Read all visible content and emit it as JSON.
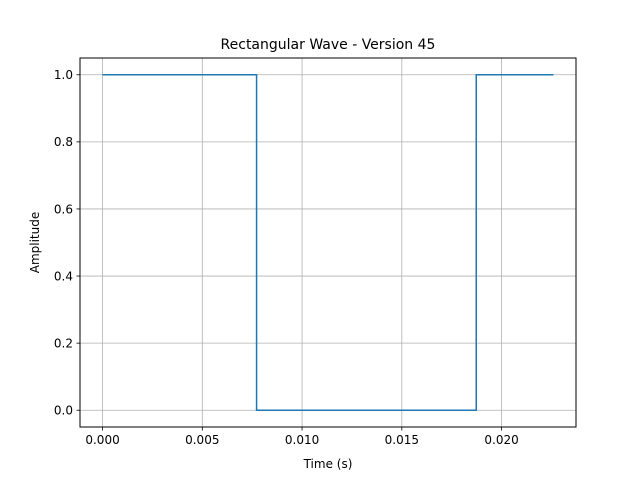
{
  "chart_data": {
    "type": "line",
    "title": "Rectangular Wave - Version 45",
    "xlabel": "Time (s)",
    "ylabel": "Amplitude",
    "xlim": [
      -0.00113,
      0.02373
    ],
    "ylim": [
      -0.05,
      1.05
    ],
    "grid": true,
    "x_ticks": [
      0.0,
      0.005,
      0.01,
      0.015,
      0.02
    ],
    "x_tick_labels": [
      "0.000",
      "0.005",
      "0.010",
      "0.015",
      "0.020"
    ],
    "y_ticks": [
      0.0,
      0.2,
      0.4,
      0.6,
      0.8,
      1.0
    ],
    "y_tick_labels": [
      "0.0",
      "0.2",
      "0.4",
      "0.6",
      "0.8",
      "1.0"
    ],
    "series": [
      {
        "color": "#1f77b4",
        "x": [
          0.0,
          0.00772,
          0.00772,
          0.01873,
          0.01873,
          0.0226
        ],
        "y": [
          1,
          1,
          0,
          0,
          1,
          1
        ]
      }
    ]
  }
}
